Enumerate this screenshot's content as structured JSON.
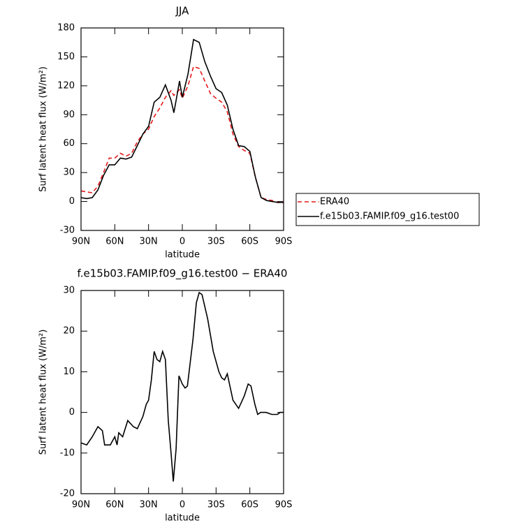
{
  "chart_data": [
    {
      "type": "line",
      "title": "JJA",
      "x_label": "latitude",
      "y_label": "Surf latent heat flux (W/m²)",
      "x": [
        90,
        85,
        80,
        75,
        70,
        65,
        60,
        55,
        50,
        45,
        40,
        35,
        30,
        25,
        20,
        15,
        10,
        7.5,
        5,
        2.5,
        0,
        -5,
        -10,
        -15,
        -20,
        -25,
        -30,
        -35,
        -40,
        -45,
        -50,
        -55,
        -60,
        -65,
        -70,
        -75,
        -80,
        -85,
        -90
      ],
      "series": [
        {
          "name": "ERA40",
          "color": "#e41a1c",
          "dashed": true,
          "values": [
            11,
            10,
            9,
            16,
            30,
            45,
            45,
            50,
            47,
            50,
            62,
            70,
            75,
            88,
            97,
            108,
            115,
            110,
            113,
            116,
            107,
            120,
            140,
            138,
            125,
            112,
            107,
            103,
            93,
            70,
            57,
            53,
            50,
            25,
            4,
            2,
            1,
            -1,
            0
          ]
        },
        {
          "name": "f.e15b03.FAMIP.f09_g16.test00",
          "color": "#000000",
          "dashed": false,
          "values": [
            4,
            3,
            4,
            12,
            27,
            38,
            38,
            45,
            44,
            46,
            58,
            70,
            78,
            103,
            108,
            121,
            105,
            92,
            108,
            125,
            108,
            132,
            168,
            165,
            145,
            130,
            117,
            113,
            100,
            75,
            58,
            57,
            52,
            25,
            4,
            1,
            0,
            -1,
            -1
          ]
        }
      ],
      "xlim": [
        90,
        -90
      ],
      "ylim": [
        -30,
        180
      ],
      "xticks": [
        {
          "value": 90,
          "label": "90N"
        },
        {
          "value": 60,
          "label": "60N"
        },
        {
          "value": 30,
          "label": "30N"
        },
        0,
        {
          "value": -30,
          "label": "30S"
        },
        {
          "value": -60,
          "label": "60S"
        },
        {
          "value": -90,
          "label": "90S"
        }
      ],
      "yticks": [
        -30,
        0,
        30,
        60,
        90,
        120,
        150,
        180
      ],
      "legend": "right"
    },
    {
      "type": "line",
      "title": "f.e15b03.FAMIP.f09_g16.test00 − ERA40",
      "x_label": "latitude",
      "y_label": "Surf latent heat flux (W/m²)",
      "x": [
        90,
        85,
        80,
        75,
        71,
        69,
        64,
        60,
        58,
        56.5,
        53,
        48.5,
        43.5,
        40,
        35,
        32,
        30,
        27.5,
        25,
        22.5,
        20,
        17.5,
        15,
        12.5,
        10,
        8,
        5.5,
        3,
        0,
        -2.5,
        -4.5,
        -9.5,
        -12.5,
        -15,
        -17.5,
        -22.5,
        -27.5,
        -32.5,
        -35,
        -37.5,
        -40,
        -45,
        -50,
        -55,
        -58.5,
        -61,
        -64.5,
        -67,
        -69.5,
        -74.5,
        -79.5,
        -84.5,
        -87,
        -90
      ],
      "series": [
        {
          "color": "#000000",
          "dashed": false,
          "values": [
            -7.5,
            -8,
            -6,
            -3.5,
            -4.5,
            -8,
            -8,
            -6,
            -8,
            -5,
            -6,
            -2,
            -3.5,
            -4,
            -1,
            2,
            3,
            8,
            15,
            13,
            12.5,
            15,
            13,
            -2,
            -10,
            -17,
            -9,
            9,
            7,
            6,
            6.5,
            18,
            27,
            29.5,
            29,
            23,
            15,
            10,
            8.5,
            8,
            9.5,
            3,
            1,
            4,
            7,
            6.5,
            2,
            -0.5,
            0,
            0,
            -0.5,
            -0.5,
            0,
            0
          ]
        }
      ],
      "xlim": [
        90,
        -90
      ],
      "ylim": [
        -20,
        30
      ],
      "xticks": [
        {
          "value": 90,
          "label": "90N"
        },
        {
          "value": 60,
          "label": "60N"
        },
        {
          "value": 30,
          "label": "30N"
        },
        0,
        {
          "value": -30,
          "label": "30S"
        },
        {
          "value": -60,
          "label": "60S"
        },
        {
          "value": -90,
          "label": "90S"
        }
      ],
      "yticks": [
        -20,
        -10,
        0,
        10,
        20,
        30
      ]
    }
  ]
}
